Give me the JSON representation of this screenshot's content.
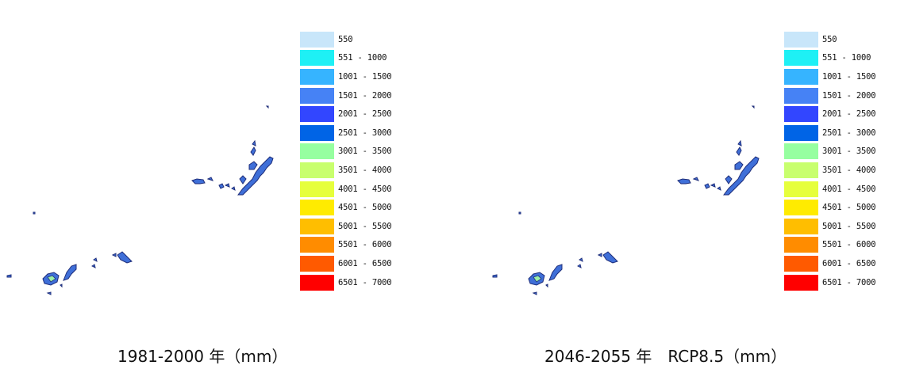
{
  "colors": {
    "island_fill": "#3f6fd8",
    "island_stroke": "#1f2e7a",
    "highlight_fill": "#9cf0a8"
  },
  "legend": [
    {
      "label": "550",
      "color": "#c8e6fa"
    },
    {
      "label": "551 - 1000",
      "color": "#1ef0f5"
    },
    {
      "label": "1001 - 1500",
      "color": "#36b4ff"
    },
    {
      "label": "1501 - 2000",
      "color": "#4682f5"
    },
    {
      "label": "2001 - 2500",
      "color": "#3246ff"
    },
    {
      "label": "2501 - 3000",
      "color": "#0064e6"
    },
    {
      "label": "3001 - 3500",
      "color": "#96ffa0"
    },
    {
      "label": "3501 - 4000",
      "color": "#c8ff6e"
    },
    {
      "label": "4001 - 4500",
      "color": "#e6ff3c"
    },
    {
      "label": "4501 - 5000",
      "color": "#ffeb00"
    },
    {
      "label": "5001 - 5500",
      "color": "#ffbe00"
    },
    {
      "label": "5501 - 6000",
      "color": "#ff8c00"
    },
    {
      "label": "6001 - 6500",
      "color": "#ff5a00"
    },
    {
      "label": "6501 - 7000",
      "color": "#ff0000"
    }
  ],
  "panels": [
    {
      "caption": "1981-2000 年（mm）"
    },
    {
      "caption": "2046-2055 年　RCP8.5（mm）"
    }
  ]
}
